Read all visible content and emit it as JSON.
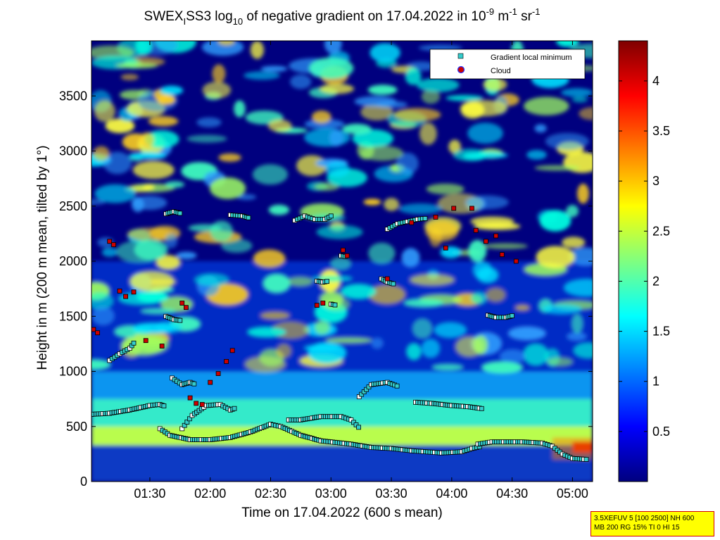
{
  "title": {
    "part1": "SWEX",
    "sub1": "I",
    "part2": "SS3 log",
    "sub2": "10",
    "part3": " of negative gradient on 17.04.2022 in 10",
    "sup1": "-9",
    "part4": " m",
    "sup2": "-1",
    "part5": " sr",
    "sup3": "-1"
  },
  "xlabel": "Time on 17.04.2022 (600 s mean)",
  "ylabel": "Height in m (200 m mean, tilted by 1°)",
  "legend": {
    "items": [
      {
        "label": "Gradient local minimum",
        "color": "#33cccc"
      },
      {
        "label": "Cloud",
        "color": "#cc0000"
      }
    ]
  },
  "info_box": {
    "line1": "3.5XEFUV 5 [100 2500] NH 600",
    "line2": "MB 200 RG 15% TI 0 HI 15"
  },
  "chart_data": {
    "type": "heatmap",
    "title": "SWEX_I SS3 log10 of negative gradient on 17.04.2022 in 10^-9 m^-1 sr^-1",
    "xlabel": "Time on 17.04.2022 (600 s mean)",
    "ylabel": "Height in m (200 m mean, tilted by 1°)",
    "x_ticks": [
      "01:30",
      "02:00",
      "02:30",
      "03:00",
      "03:30",
      "04:00",
      "04:30",
      "05:00"
    ],
    "x_tick_minutes": [
      90,
      120,
      150,
      180,
      210,
      240,
      270,
      300
    ],
    "xlim_minutes": [
      61,
      310
    ],
    "y_ticks": [
      0,
      500,
      1000,
      1500,
      2000,
      2500,
      3000,
      3500
    ],
    "ylim": [
      0,
      4000
    ],
    "colorbar": {
      "ticks": [
        "0.5",
        "1",
        "1.5",
        "2",
        "2.5",
        "3",
        "3.5",
        "4"
      ],
      "tick_values": [
        0.5,
        1,
        1.5,
        2,
        2.5,
        3,
        3.5,
        4
      ],
      "range": [
        0,
        4.4
      ],
      "colormap": "jet"
    },
    "grid": false,
    "legend_position": "top-right",
    "series": [
      {
        "name": "Gradient local minimum",
        "marker": "square",
        "color": "#33cccc",
        "segments": [
          [
            [
              61,
              610
            ],
            [
              70,
              620
            ],
            [
              80,
              650
            ],
            [
              90,
              690
            ],
            [
              95,
              700
            ],
            [
              98,
              680
            ]
          ],
          [
            [
              95,
              480
            ],
            [
              100,
              420
            ],
            [
              110,
              380
            ],
            [
              120,
              380
            ],
            [
              130,
              400
            ],
            [
              140,
              450
            ],
            [
              150,
              520
            ],
            [
              155,
              500
            ],
            [
              165,
              420
            ],
            [
              175,
              370
            ],
            [
              190,
              340
            ],
            [
              200,
              310
            ],
            [
              210,
              300
            ],
            [
              220,
              280
            ],
            [
              235,
              260
            ],
            [
              245,
              270
            ],
            [
              250,
              300
            ],
            [
              255,
              320
            ]
          ],
          [
            [
              253,
              340
            ],
            [
              260,
              360
            ],
            [
              275,
              360
            ],
            [
              285,
              350
            ],
            [
              290,
              320
            ],
            [
              295,
              250
            ],
            [
              300,
              210
            ],
            [
              308,
              200
            ]
          ],
          [
            [
              106,
              480
            ],
            [
              111,
              600
            ],
            [
              118,
              690
            ],
            [
              125,
              700
            ],
            [
              130,
              650
            ],
            [
              133,
              670
            ]
          ],
          [
            [
              159,
              560
            ],
            [
              165,
              560
            ],
            [
              175,
              590
            ],
            [
              185,
              590
            ],
            [
              190,
              560
            ],
            [
              195,
              470
            ]
          ],
          [
            [
              222,
              720
            ],
            [
              230,
              710
            ],
            [
              240,
              690
            ],
            [
              248,
              680
            ],
            [
              256,
              660
            ]
          ],
          [
            [
              194,
              770
            ],
            [
              200,
              880
            ],
            [
              208,
              900
            ],
            [
              214,
              860
            ]
          ],
          [
            [
              101,
              940
            ],
            [
              106,
              880
            ],
            [
              110,
              900
            ],
            [
              113,
              880
            ]
          ],
          [
            [
              70,
              1100
            ],
            [
              75,
              1160
            ],
            [
              80,
              1210
            ],
            [
              83,
              1280
            ]
          ],
          [
            [
              98,
              1500
            ],
            [
              102,
              1470
            ],
            [
              106,
              1460
            ]
          ],
          [
            [
              258,
              1510
            ],
            [
              262,
              1490
            ],
            [
              267,
              1490
            ],
            [
              271,
              1510
            ]
          ],
          [
            [
              162,
              2370
            ],
            [
              167,
              2410
            ],
            [
              172,
              2380
            ],
            [
              177,
              2380
            ],
            [
              181,
              2420
            ]
          ],
          [
            [
              208,
              2290
            ],
            [
              213,
              2340
            ],
            [
              218,
              2360
            ],
            [
              223,
              2380
            ],
            [
              228,
              2390
            ]
          ],
          [
            [
              98,
              2430
            ],
            [
              102,
              2450
            ],
            [
              106,
              2430
            ]
          ],
          [
            [
              130,
              2420
            ],
            [
              136,
              2410
            ],
            [
              140,
              2390
            ]
          ],
          [
            [
              173,
              1820
            ],
            [
              176,
              1810
            ],
            [
              179,
              1820
            ]
          ],
          [
            [
              205,
              1840
            ],
            [
              208,
              1810
            ],
            [
              212,
              1790
            ]
          ],
          [
            [
              180,
              1610
            ],
            [
              183,
              1600
            ]
          ],
          [
            [
              185,
              2050
            ],
            [
              188,
              2040
            ]
          ]
        ]
      },
      {
        "name": "Cloud",
        "marker": "square",
        "color": "#cc0000",
        "points": [
          [
            62,
            1380
          ],
          [
            64,
            1350
          ],
          [
            70,
            2180
          ],
          [
            72,
            2150
          ],
          [
            75,
            1730
          ],
          [
            78,
            1680
          ],
          [
            82,
            1720
          ],
          [
            88,
            1280
          ],
          [
            96,
            1230
          ],
          [
            106,
            1620
          ],
          [
            108,
            1580
          ],
          [
            110,
            760
          ],
          [
            113,
            710
          ],
          [
            116,
            700
          ],
          [
            120,
            900
          ],
          [
            124,
            980
          ],
          [
            128,
            1090
          ],
          [
            131,
            1190
          ],
          [
            173,
            1600
          ],
          [
            176,
            1620
          ],
          [
            186,
            2100
          ],
          [
            188,
            2050
          ],
          [
            208,
            1840
          ],
          [
            220,
            2350
          ],
          [
            232,
            2400
          ],
          [
            237,
            2120
          ],
          [
            241,
            2480
          ],
          [
            250,
            2480
          ],
          [
            252,
            2280
          ],
          [
            257,
            2180
          ],
          [
            262,
            2230
          ],
          [
            265,
            2060
          ],
          [
            272,
            2000
          ]
        ]
      }
    ]
  }
}
